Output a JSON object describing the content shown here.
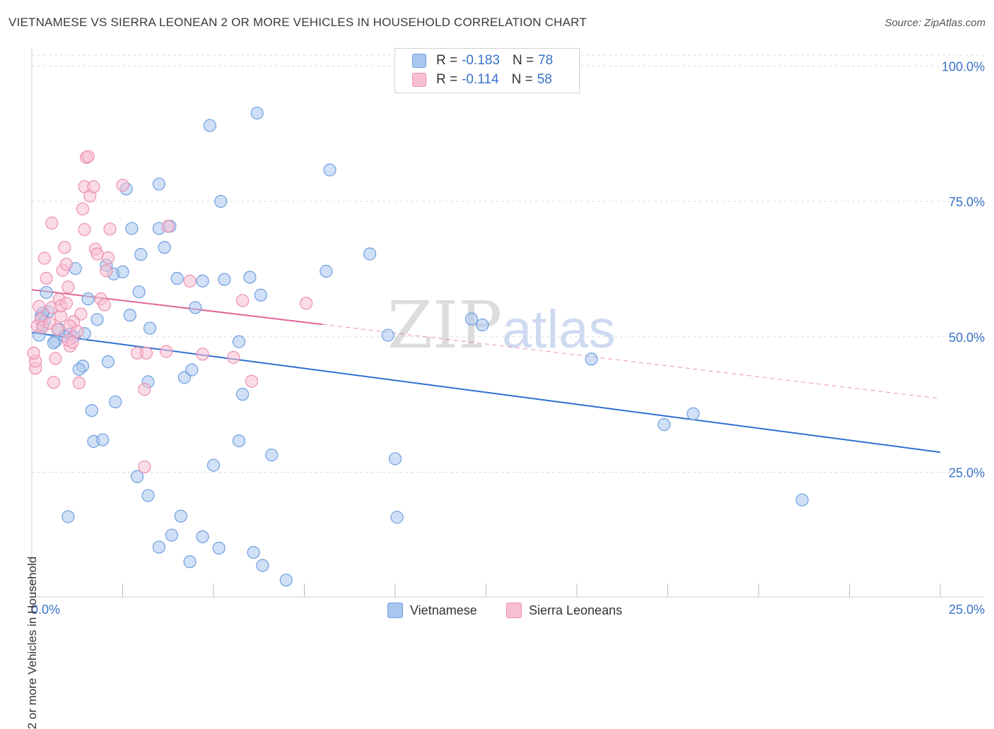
{
  "title": "VIETNAMESE VS SIERRA LEONEAN 2 OR MORE VEHICLES IN HOUSEHOLD CORRELATION CHART",
  "source": "Source: ZipAtlas.com",
  "watermark": {
    "zip": "ZIP",
    "atlas": "atlas"
  },
  "legend": {
    "rows": [
      {
        "r_label": "R =",
        "r_value": "-0.183",
        "n_label": "N =",
        "n_value": "78",
        "color": "#a9c6ee",
        "border": "#6f9fe0"
      },
      {
        "r_label": "R =",
        "r_value": "-0.114",
        "n_label": "N =",
        "n_value": "58",
        "color": "#f8bfd2",
        "border": "#ec8fb0"
      }
    ]
  },
  "bottom_legend": {
    "series1": "Vietnamese",
    "series2": "Sierra Leoneans"
  },
  "chart_data": {
    "type": "scatter",
    "ylabel": "2 or more Vehicles in Household",
    "x_tick_labels": [
      "0.0%",
      "25.0%"
    ],
    "y_tick_labels": [
      "100.0%",
      "75.0%",
      "50.0%",
      "25.0%"
    ],
    "y_ticks": [
      100,
      75,
      50,
      25
    ],
    "xlim": [
      0,
      25
    ],
    "ylim": [
      2,
      102
    ],
    "colors": {
      "vietnamese": "#6f9fe0",
      "vietnamese_fill": "#a9c6ee",
      "vietnamese_line": "#2f6fd0",
      "sierra": "#ec8fb0",
      "sierra_fill": "#f8bfd2",
      "sierra_line": "#e0649a",
      "axis_text": "#3a73c8"
    },
    "series": [
      {
        "name": "Vietnamese",
        "trend": {
          "x0": 0,
          "y0": 50.8,
          "x1": 25,
          "y1": 28.7
        },
        "points": [
          [
            0.25,
            53.8
          ],
          [
            0.3,
            52.2
          ],
          [
            0.45,
            54.6
          ],
          [
            0.3,
            54.4
          ],
          [
            0.4,
            58.2
          ],
          [
            0.65,
            49.2
          ],
          [
            0.75,
            51.4
          ],
          [
            0.9,
            50.2
          ],
          [
            1.2,
            62.6
          ],
          [
            1.4,
            44.6
          ],
          [
            1.55,
            57.0
          ],
          [
            1.3,
            44.0
          ],
          [
            1.8,
            53.2
          ],
          [
            2.1,
            45.4
          ],
          [
            2.05,
            63.2
          ],
          [
            2.25,
            61.6
          ],
          [
            2.5,
            62.0
          ],
          [
            2.6,
            77.3
          ],
          [
            2.7,
            54.0
          ],
          [
            2.75,
            70.0
          ],
          [
            2.95,
            58.3
          ],
          [
            3.0,
            65.2
          ],
          [
            3.25,
            51.6
          ],
          [
            3.2,
            41.7
          ],
          [
            3.5,
            70.0
          ],
          [
            3.5,
            78.2
          ],
          [
            3.65,
            66.5
          ],
          [
            3.8,
            70.4
          ],
          [
            4.0,
            60.8
          ],
          [
            4.2,
            42.5
          ],
          [
            4.4,
            43.9
          ],
          [
            4.5,
            55.4
          ],
          [
            4.7,
            60.3
          ],
          [
            4.9,
            89.0
          ],
          [
            5.2,
            75.0
          ],
          [
            5.3,
            60.6
          ],
          [
            5.7,
            49.1
          ],
          [
            5.8,
            39.4
          ],
          [
            6.0,
            61.0
          ],
          [
            6.2,
            91.3
          ],
          [
            6.3,
            57.7
          ],
          [
            6.6,
            28.2
          ],
          [
            8.1,
            62.1
          ],
          [
            8.2,
            80.8
          ],
          [
            9.3,
            65.3
          ],
          [
            9.8,
            50.3
          ],
          [
            10.0,
            27.5
          ],
          [
            10.05,
            16.7
          ],
          [
            12.1,
            53.3
          ],
          [
            12.4,
            52.2
          ],
          [
            15.4,
            45.9
          ],
          [
            17.4,
            33.8
          ],
          [
            18.2,
            35.8
          ],
          [
            21.2,
            19.9
          ],
          [
            1.0,
            16.8
          ],
          [
            1.65,
            36.4
          ],
          [
            1.7,
            30.7
          ],
          [
            1.95,
            31.0
          ],
          [
            2.3,
            38.0
          ],
          [
            2.9,
            24.2
          ],
          [
            3.2,
            20.7
          ],
          [
            3.5,
            11.2
          ],
          [
            3.85,
            13.4
          ],
          [
            4.1,
            16.9
          ],
          [
            4.35,
            8.5
          ],
          [
            4.7,
            13.1
          ],
          [
            5.0,
            26.3
          ],
          [
            5.15,
            11.0
          ],
          [
            5.7,
            30.8
          ],
          [
            6.1,
            10.2
          ],
          [
            6.35,
            7.8
          ],
          [
            7.0,
            5.1
          ],
          [
            0.2,
            50.3
          ],
          [
            0.6,
            48.9
          ],
          [
            0.35,
            52.8
          ],
          [
            1.05,
            50.5
          ],
          [
            1.15,
            50.0
          ],
          [
            1.45,
            50.6
          ]
        ]
      },
      {
        "name": "Sierra Leoneans",
        "trend": {
          "x0": 0,
          "y0": 58.7,
          "x1": 8.0,
          "y1": 52.3,
          "x2": 25,
          "y2": 38.6
        },
        "points": [
          [
            0.1,
            44.2
          ],
          [
            0.1,
            45.5
          ],
          [
            0.15,
            52.0
          ],
          [
            0.2,
            55.6
          ],
          [
            0.25,
            53.2
          ],
          [
            0.3,
            51.8
          ],
          [
            0.4,
            60.8
          ],
          [
            0.35,
            64.5
          ],
          [
            0.55,
            55.4
          ],
          [
            0.6,
            41.6
          ],
          [
            0.65,
            46.0
          ],
          [
            0.55,
            71.0
          ],
          [
            0.8,
            53.8
          ],
          [
            0.85,
            62.3
          ],
          [
            0.9,
            66.5
          ],
          [
            0.95,
            63.4
          ],
          [
            1.0,
            59.2
          ],
          [
            1.05,
            48.3
          ],
          [
            1.15,
            52.8
          ],
          [
            1.3,
            41.5
          ],
          [
            1.35,
            54.2
          ],
          [
            1.4,
            73.6
          ],
          [
            1.45,
            77.7
          ],
          [
            1.45,
            69.8
          ],
          [
            1.5,
            83.1
          ],
          [
            1.55,
            83.3
          ],
          [
            1.6,
            76.0
          ],
          [
            1.7,
            77.7
          ],
          [
            1.75,
            66.2
          ],
          [
            1.8,
            65.3
          ],
          [
            1.9,
            57.0
          ],
          [
            2.0,
            55.9
          ],
          [
            2.05,
            62.2
          ],
          [
            2.1,
            64.6
          ],
          [
            2.15,
            69.9
          ],
          [
            2.5,
            78.0
          ],
          [
            2.9,
            47.0
          ],
          [
            3.1,
            40.3
          ],
          [
            3.1,
            26.0
          ],
          [
            3.15,
            47.0
          ],
          [
            3.7,
            47.3
          ],
          [
            3.75,
            70.4
          ],
          [
            4.35,
            60.3
          ],
          [
            4.7,
            46.8
          ],
          [
            5.55,
            46.2
          ],
          [
            5.8,
            56.7
          ],
          [
            6.05,
            41.8
          ],
          [
            7.55,
            56.2
          ],
          [
            0.05,
            47.0
          ],
          [
            0.5,
            52.5
          ],
          [
            0.7,
            51.4
          ],
          [
            0.75,
            56.9
          ],
          [
            0.8,
            55.7
          ],
          [
            0.95,
            56.2
          ],
          [
            1.0,
            49.4
          ],
          [
            1.05,
            52.0
          ],
          [
            1.12,
            49.0
          ],
          [
            1.25,
            51.0
          ]
        ]
      }
    ]
  }
}
